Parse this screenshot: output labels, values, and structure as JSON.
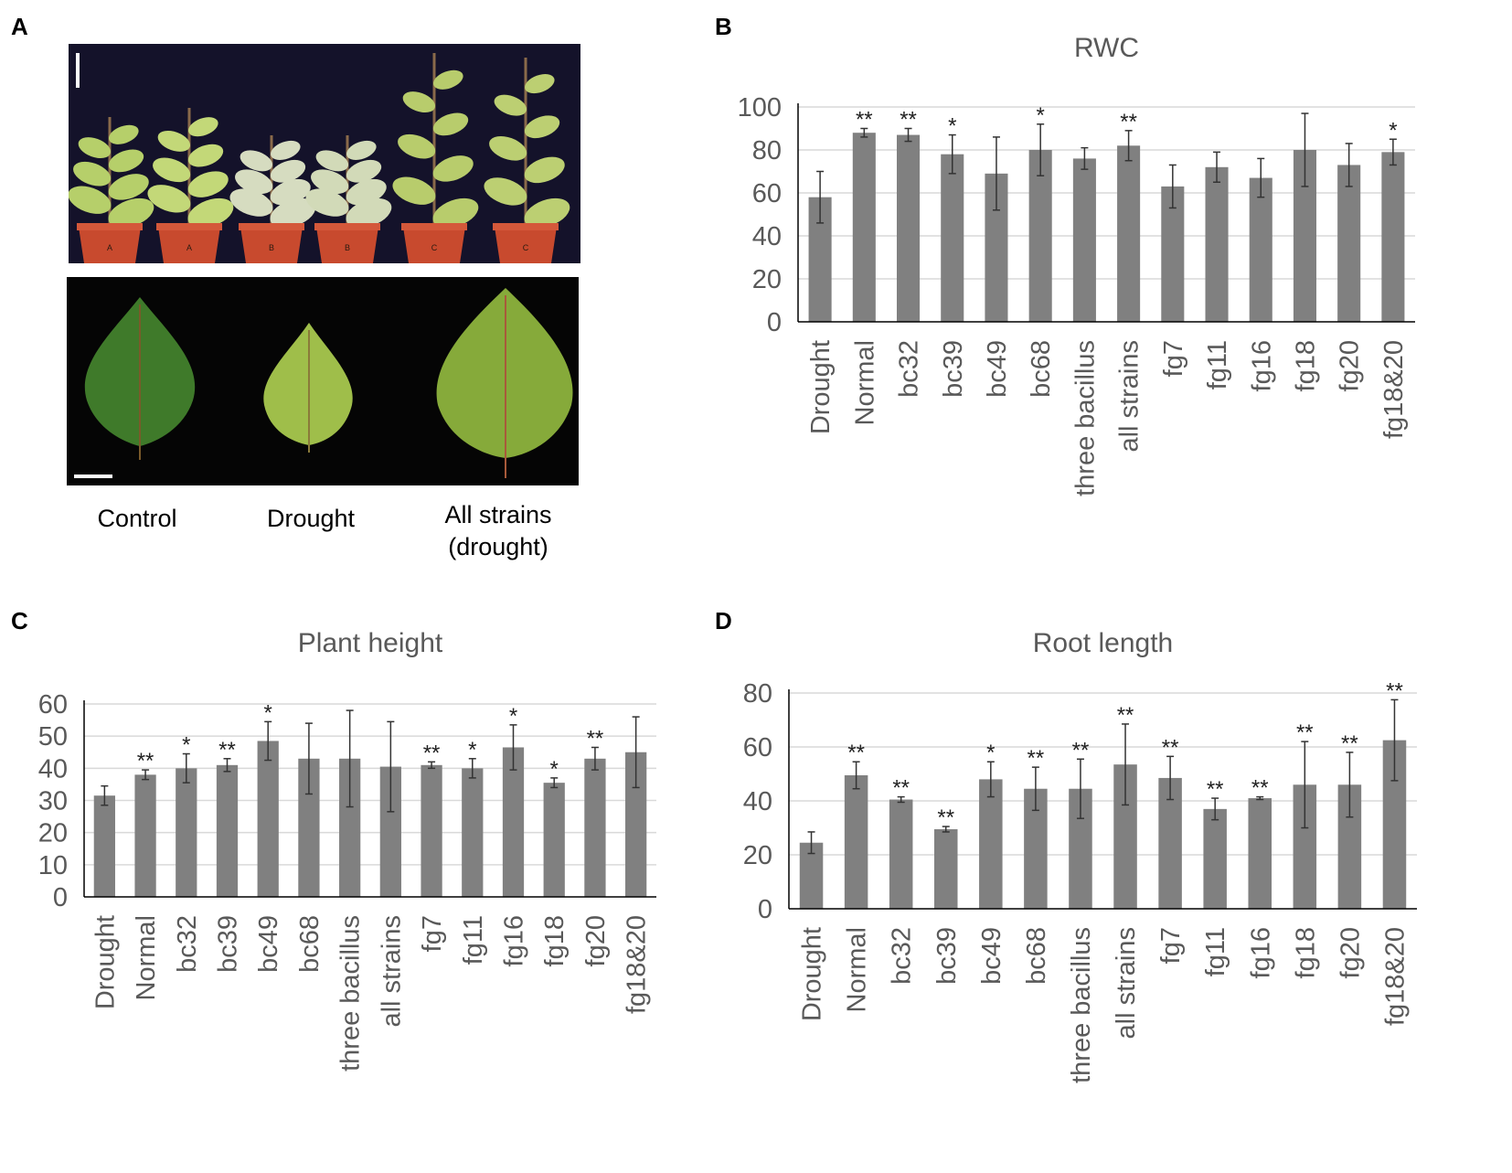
{
  "panels": {
    "a": {
      "letter": "A"
    },
    "b": {
      "letter": "B"
    },
    "c": {
      "letter": "C"
    },
    "d": {
      "letter": "D"
    }
  },
  "photo_captions": {
    "control": "Control",
    "drought": "Drought",
    "all_strains_line1": "All strains",
    "all_strains_line2": "(drought)"
  },
  "photo_pot_labels": [
    "A",
    "A",
    "B",
    "B",
    "C",
    "C"
  ],
  "colors": {
    "bar": "#808080",
    "gridline": "#d9d9d9",
    "axis": "#000000",
    "text": "#595959",
    "photo_background": "#14122a",
    "leaf_control": "#3f7a2a",
    "leaf_drought": "#9fbe4a",
    "leaf_all_strains": "#86aa3a",
    "pot": "#c84a2e"
  },
  "chart_data": [
    {
      "id": "rwc",
      "type": "bar",
      "title": "RWC",
      "xlabel": "",
      "ylabel": "",
      "ylim": [
        0,
        100
      ],
      "yticks": [
        0,
        20,
        40,
        60,
        80,
        100
      ],
      "grid": true,
      "legend": "none",
      "error_bars": true,
      "categories": [
        "Drought",
        "Normal",
        "bc32",
        "bc39",
        "bc49",
        "bc68",
        "three bacillus",
        "all strains",
        "fg7",
        "fg11",
        "fg16",
        "fg18",
        "fg20",
        "fg18&20"
      ],
      "values": [
        58,
        88,
        87,
        78,
        69,
        80,
        76,
        82,
        63,
        72,
        67,
        80,
        73,
        79
      ],
      "errors": [
        12,
        2,
        3,
        9,
        17,
        12,
        5,
        7,
        10,
        7,
        9,
        17,
        10,
        6
      ],
      "significance": [
        "",
        "**",
        "**",
        "*",
        "",
        "*",
        "",
        "**",
        "",
        "",
        "",
        "",
        "",
        "*"
      ]
    },
    {
      "id": "plant-height",
      "type": "bar",
      "title": "Plant height",
      "xlabel": "",
      "ylabel": "",
      "ylim": [
        0,
        60
      ],
      "yticks": [
        0,
        10,
        20,
        30,
        40,
        50,
        60
      ],
      "grid": true,
      "legend": "none",
      "error_bars": true,
      "categories": [
        "Drought",
        "Normal",
        "bc32",
        "bc39",
        "bc49",
        "bc68",
        "three bacillus",
        "all strains",
        "fg7",
        "fg11",
        "fg16",
        "fg18",
        "fg20",
        "fg18&20"
      ],
      "values": [
        31.5,
        38,
        40,
        41,
        48.5,
        43,
        43,
        40.5,
        41,
        40,
        46.5,
        35.5,
        43,
        45
      ],
      "errors": [
        3,
        1.5,
        4.5,
        2,
        6,
        11,
        15,
        14,
        1,
        3,
        7,
        1.5,
        3.5,
        11
      ],
      "significance": [
        "",
        "**",
        "*",
        "**",
        "*",
        "",
        "",
        "",
        "**",
        "*",
        "*",
        "*",
        "**",
        ""
      ]
    },
    {
      "id": "root-length",
      "type": "bar",
      "title": "Root length",
      "xlabel": "",
      "ylabel": "",
      "ylim": [
        0,
        80
      ],
      "yticks": [
        0,
        20,
        40,
        60,
        80
      ],
      "grid": true,
      "legend": "none",
      "error_bars": true,
      "categories": [
        "Drought",
        "Normal",
        "bc32",
        "bc39",
        "bc49",
        "bc68",
        "three bacillus",
        "all strains",
        "fg7",
        "fg11",
        "fg16",
        "fg18",
        "fg20",
        "fg18&20"
      ],
      "values": [
        24.5,
        49.5,
        40.5,
        29.5,
        48,
        44.5,
        44.5,
        53.5,
        48.5,
        37,
        41,
        46,
        46,
        62.5
      ],
      "errors": [
        4,
        5,
        1,
        1,
        6.5,
        8,
        11,
        15,
        8,
        4,
        0.5,
        16,
        12,
        15
      ],
      "significance": [
        "",
        "**",
        "**",
        "**",
        "*",
        "**",
        "**",
        "**",
        "**",
        "**",
        "**",
        "**",
        "**",
        "**"
      ]
    }
  ]
}
